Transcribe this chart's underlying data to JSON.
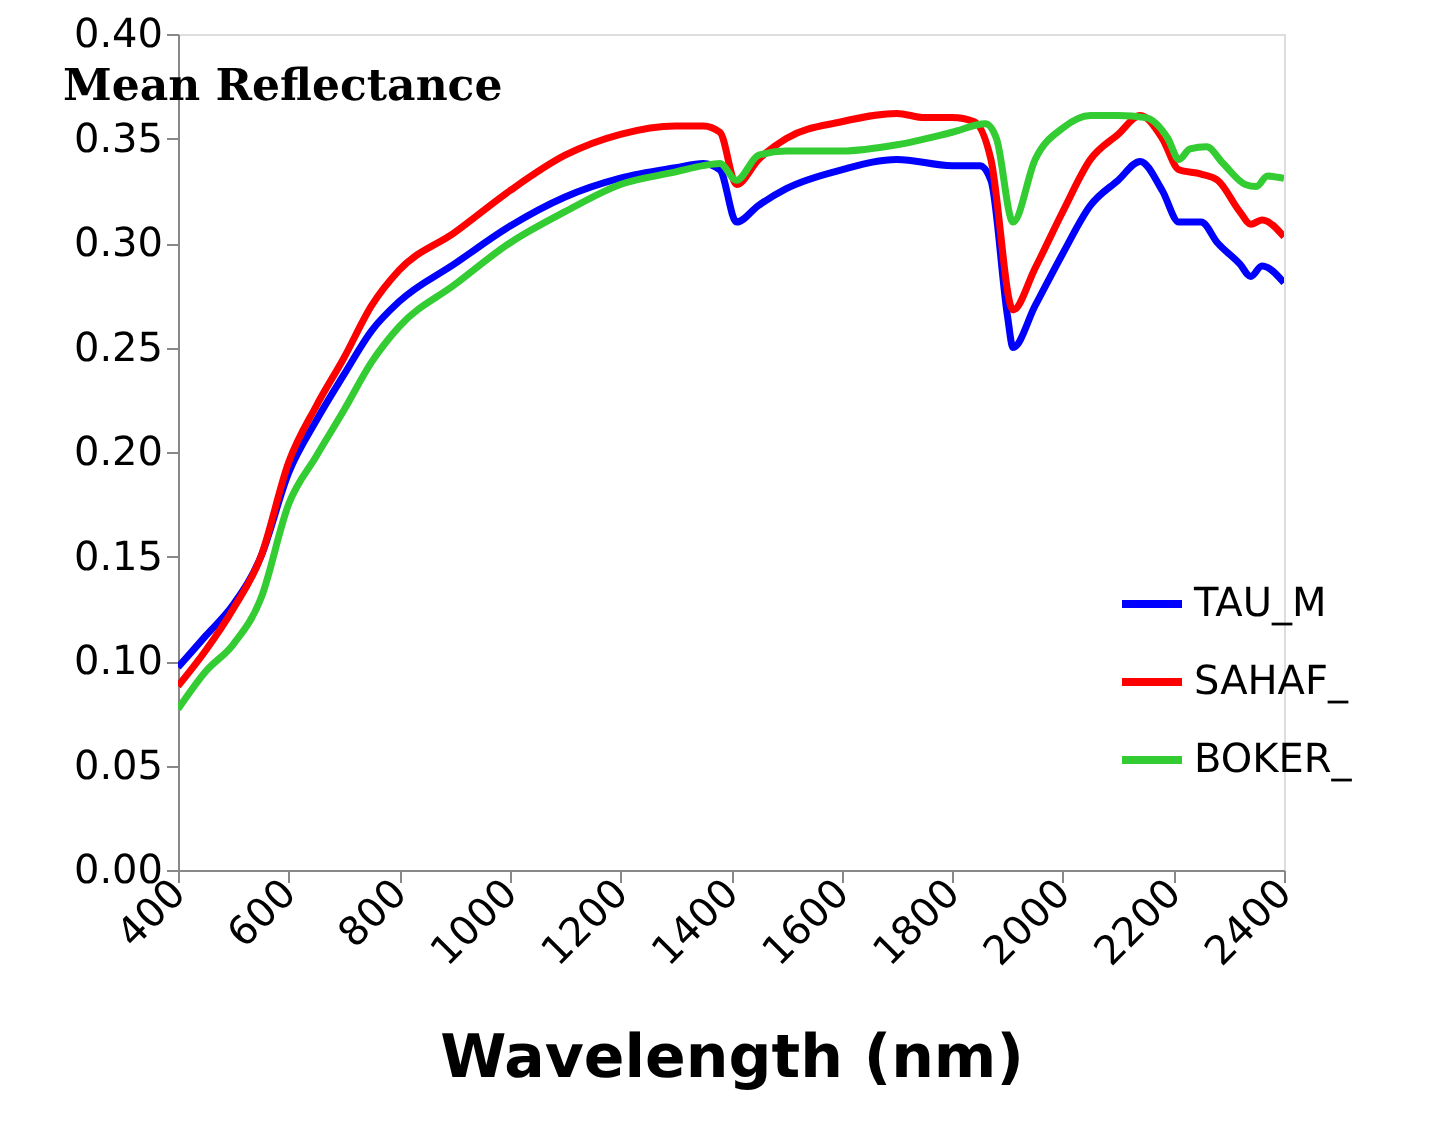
{
  "chart_data": {
    "type": "line",
    "title": "Mean Reflectance",
    "xlabel": "Wavelength (nm)",
    "xlim": [
      400,
      2400
    ],
    "xticks": [
      400,
      600,
      800,
      1000,
      1200,
      1400,
      1600,
      1800,
      2000,
      2200,
      2400
    ],
    "ylim": [
      0,
      0.4
    ],
    "yticks": [
      {
        "value": 0,
        "label": "0.00"
      },
      0.05,
      {
        "value": 0.1,
        "label": "0.10"
      },
      0.15,
      {
        "value": 0.2,
        "label": "0.20"
      },
      0.25,
      {
        "value": 0.3,
        "label": "0.30"
      },
      0.35,
      {
        "value": 0.4,
        "label": "0.40"
      }
    ],
    "grid": false,
    "legend": "right",
    "marker": "none",
    "line_style": "solid",
    "series": [
      {
        "name": "TAU_M",
        "color": "#0000ff",
        "x": [
          400,
          450,
          500,
          550,
          600,
          650,
          700,
          750,
          800,
          900,
          1000,
          1100,
          1200,
          1300,
          1350,
          1380,
          1410,
          1450,
          1500,
          1600,
          1700,
          1800,
          1850,
          1870,
          1900,
          1910,
          1950,
          2000,
          2050,
          2100,
          2140,
          2180,
          2210,
          2250,
          2280,
          2320,
          2340,
          2360,
          2400
        ],
        "values": [
          0.097,
          0.112,
          0.127,
          0.15,
          0.19,
          0.215,
          0.237,
          0.258,
          0.272,
          0.29,
          0.308,
          0.322,
          0.331,
          0.336,
          0.338,
          0.335,
          0.31,
          0.318,
          0.326,
          0.335,
          0.34,
          0.337,
          0.337,
          0.33,
          0.265,
          0.25,
          0.27,
          0.295,
          0.318,
          0.33,
          0.339,
          0.325,
          0.31,
          0.31,
          0.3,
          0.29,
          0.284,
          0.289,
          0.281
        ]
      },
      {
        "name": "SAHAF_",
        "color": "#ff0000",
        "x": [
          400,
          450,
          500,
          550,
          600,
          650,
          700,
          750,
          800,
          900,
          1000,
          1100,
          1200,
          1300,
          1350,
          1380,
          1410,
          1450,
          1500,
          1600,
          1700,
          1750,
          1800,
          1840,
          1870,
          1910,
          1950,
          2000,
          2050,
          2100,
          2140,
          2180,
          2210,
          2250,
          2280,
          2320,
          2340,
          2360,
          2400
        ],
        "values": [
          0.088,
          0.105,
          0.125,
          0.15,
          0.195,
          0.222,
          0.245,
          0.27,
          0.287,
          0.305,
          0.325,
          0.342,
          0.352,
          0.356,
          0.356,
          0.353,
          0.328,
          0.34,
          0.35,
          0.358,
          0.362,
          0.36,
          0.36,
          0.358,
          0.34,
          0.268,
          0.288,
          0.315,
          0.34,
          0.352,
          0.361,
          0.35,
          0.335,
          0.333,
          0.33,
          0.315,
          0.309,
          0.311,
          0.303
        ]
      },
      {
        "name": "BOKER_",
        "color": "#33cc33",
        "x": [
          400,
          450,
          500,
          550,
          600,
          650,
          700,
          750,
          800,
          900,
          1000,
          1100,
          1200,
          1300,
          1350,
          1380,
          1410,
          1450,
          1500,
          1600,
          1700,
          1800,
          1860,
          1880,
          1910,
          1950,
          2000,
          2050,
          2100,
          2150,
          2190,
          2210,
          2230,
          2260,
          2290,
          2330,
          2350,
          2370,
          2400
        ],
        "values": [
          0.077,
          0.095,
          0.108,
          0.13,
          0.175,
          0.198,
          0.22,
          0.243,
          0.26,
          0.28,
          0.3,
          0.315,
          0.328,
          0.334,
          0.337,
          0.338,
          0.33,
          0.342,
          0.344,
          0.344,
          0.347,
          0.353,
          0.357,
          0.35,
          0.31,
          0.34,
          0.355,
          0.361,
          0.361,
          0.36,
          0.35,
          0.34,
          0.345,
          0.346,
          0.338,
          0.328,
          0.327,
          0.332,
          0.331
        ]
      }
    ]
  }
}
